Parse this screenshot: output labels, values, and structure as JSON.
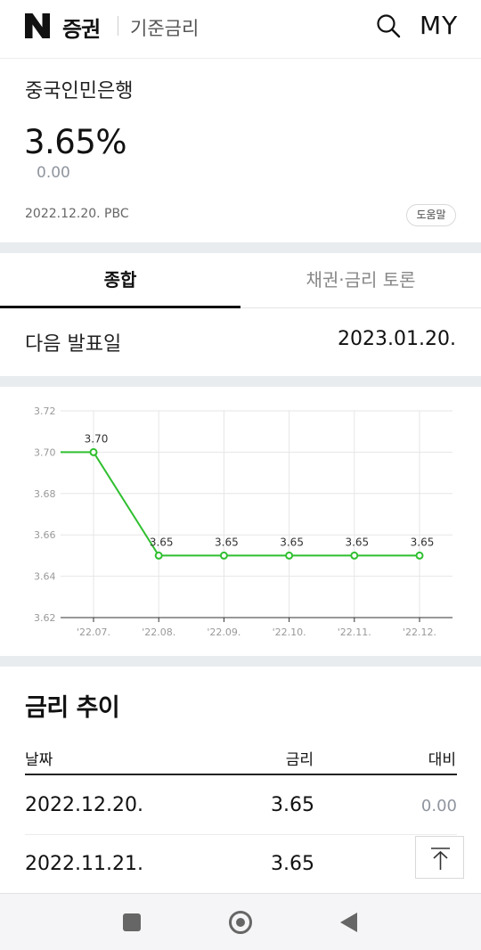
{
  "header": {
    "logo_letter": "N",
    "brand": "증권",
    "section": "기준금리",
    "my_label": "MY",
    "search_icon": "search-icon"
  },
  "summary": {
    "bank_name": "중국인민은행",
    "rate": "3.65%",
    "change": "0.00",
    "date_source": "2022.12.20. PBC",
    "help_label": "도움말"
  },
  "tabs": [
    {
      "label": "종합",
      "active": true
    },
    {
      "label": "채권·금리 토론",
      "active": false
    }
  ],
  "next_release": {
    "label": "다음 발표일",
    "date": "2023.01.20."
  },
  "chart_data": {
    "type": "line",
    "categories": [
      "'22.07.",
      "'22.08.",
      "'22.09.",
      "'22.10.",
      "'22.11.",
      "'22.12."
    ],
    "values": [
      3.7,
      3.65,
      3.65,
      3.65,
      3.65,
      3.65
    ],
    "value_labels": [
      "3.70",
      "3.65",
      "3.65",
      "3.65",
      "3.65",
      "3.65"
    ],
    "yticks": [
      "3.72",
      "3.70",
      "3.68",
      "3.66",
      "3.64",
      "3.62"
    ],
    "ylim": [
      3.62,
      3.72
    ],
    "line_extends_left_from_first": true,
    "grid": true,
    "line_color": "#2fbf2f",
    "grid_color": "#e6e6e6",
    "title": "",
    "xlabel": "",
    "ylabel": ""
  },
  "trend": {
    "title": "금리 추이",
    "columns": {
      "date": "날짜",
      "rate": "금리",
      "diff": "대비"
    },
    "rows": [
      {
        "date": "2022.12.20.",
        "rate": "3.65",
        "diff": "0.00"
      },
      {
        "date": "2022.11.21.",
        "rate": "3.65",
        "diff": ""
      }
    ]
  },
  "scroll_top_icon": "arrow-up-to-top-icon",
  "nav": {
    "recent_icon": "square-icon",
    "home_icon": "circle-icon",
    "back_icon": "triangle-back-icon"
  }
}
